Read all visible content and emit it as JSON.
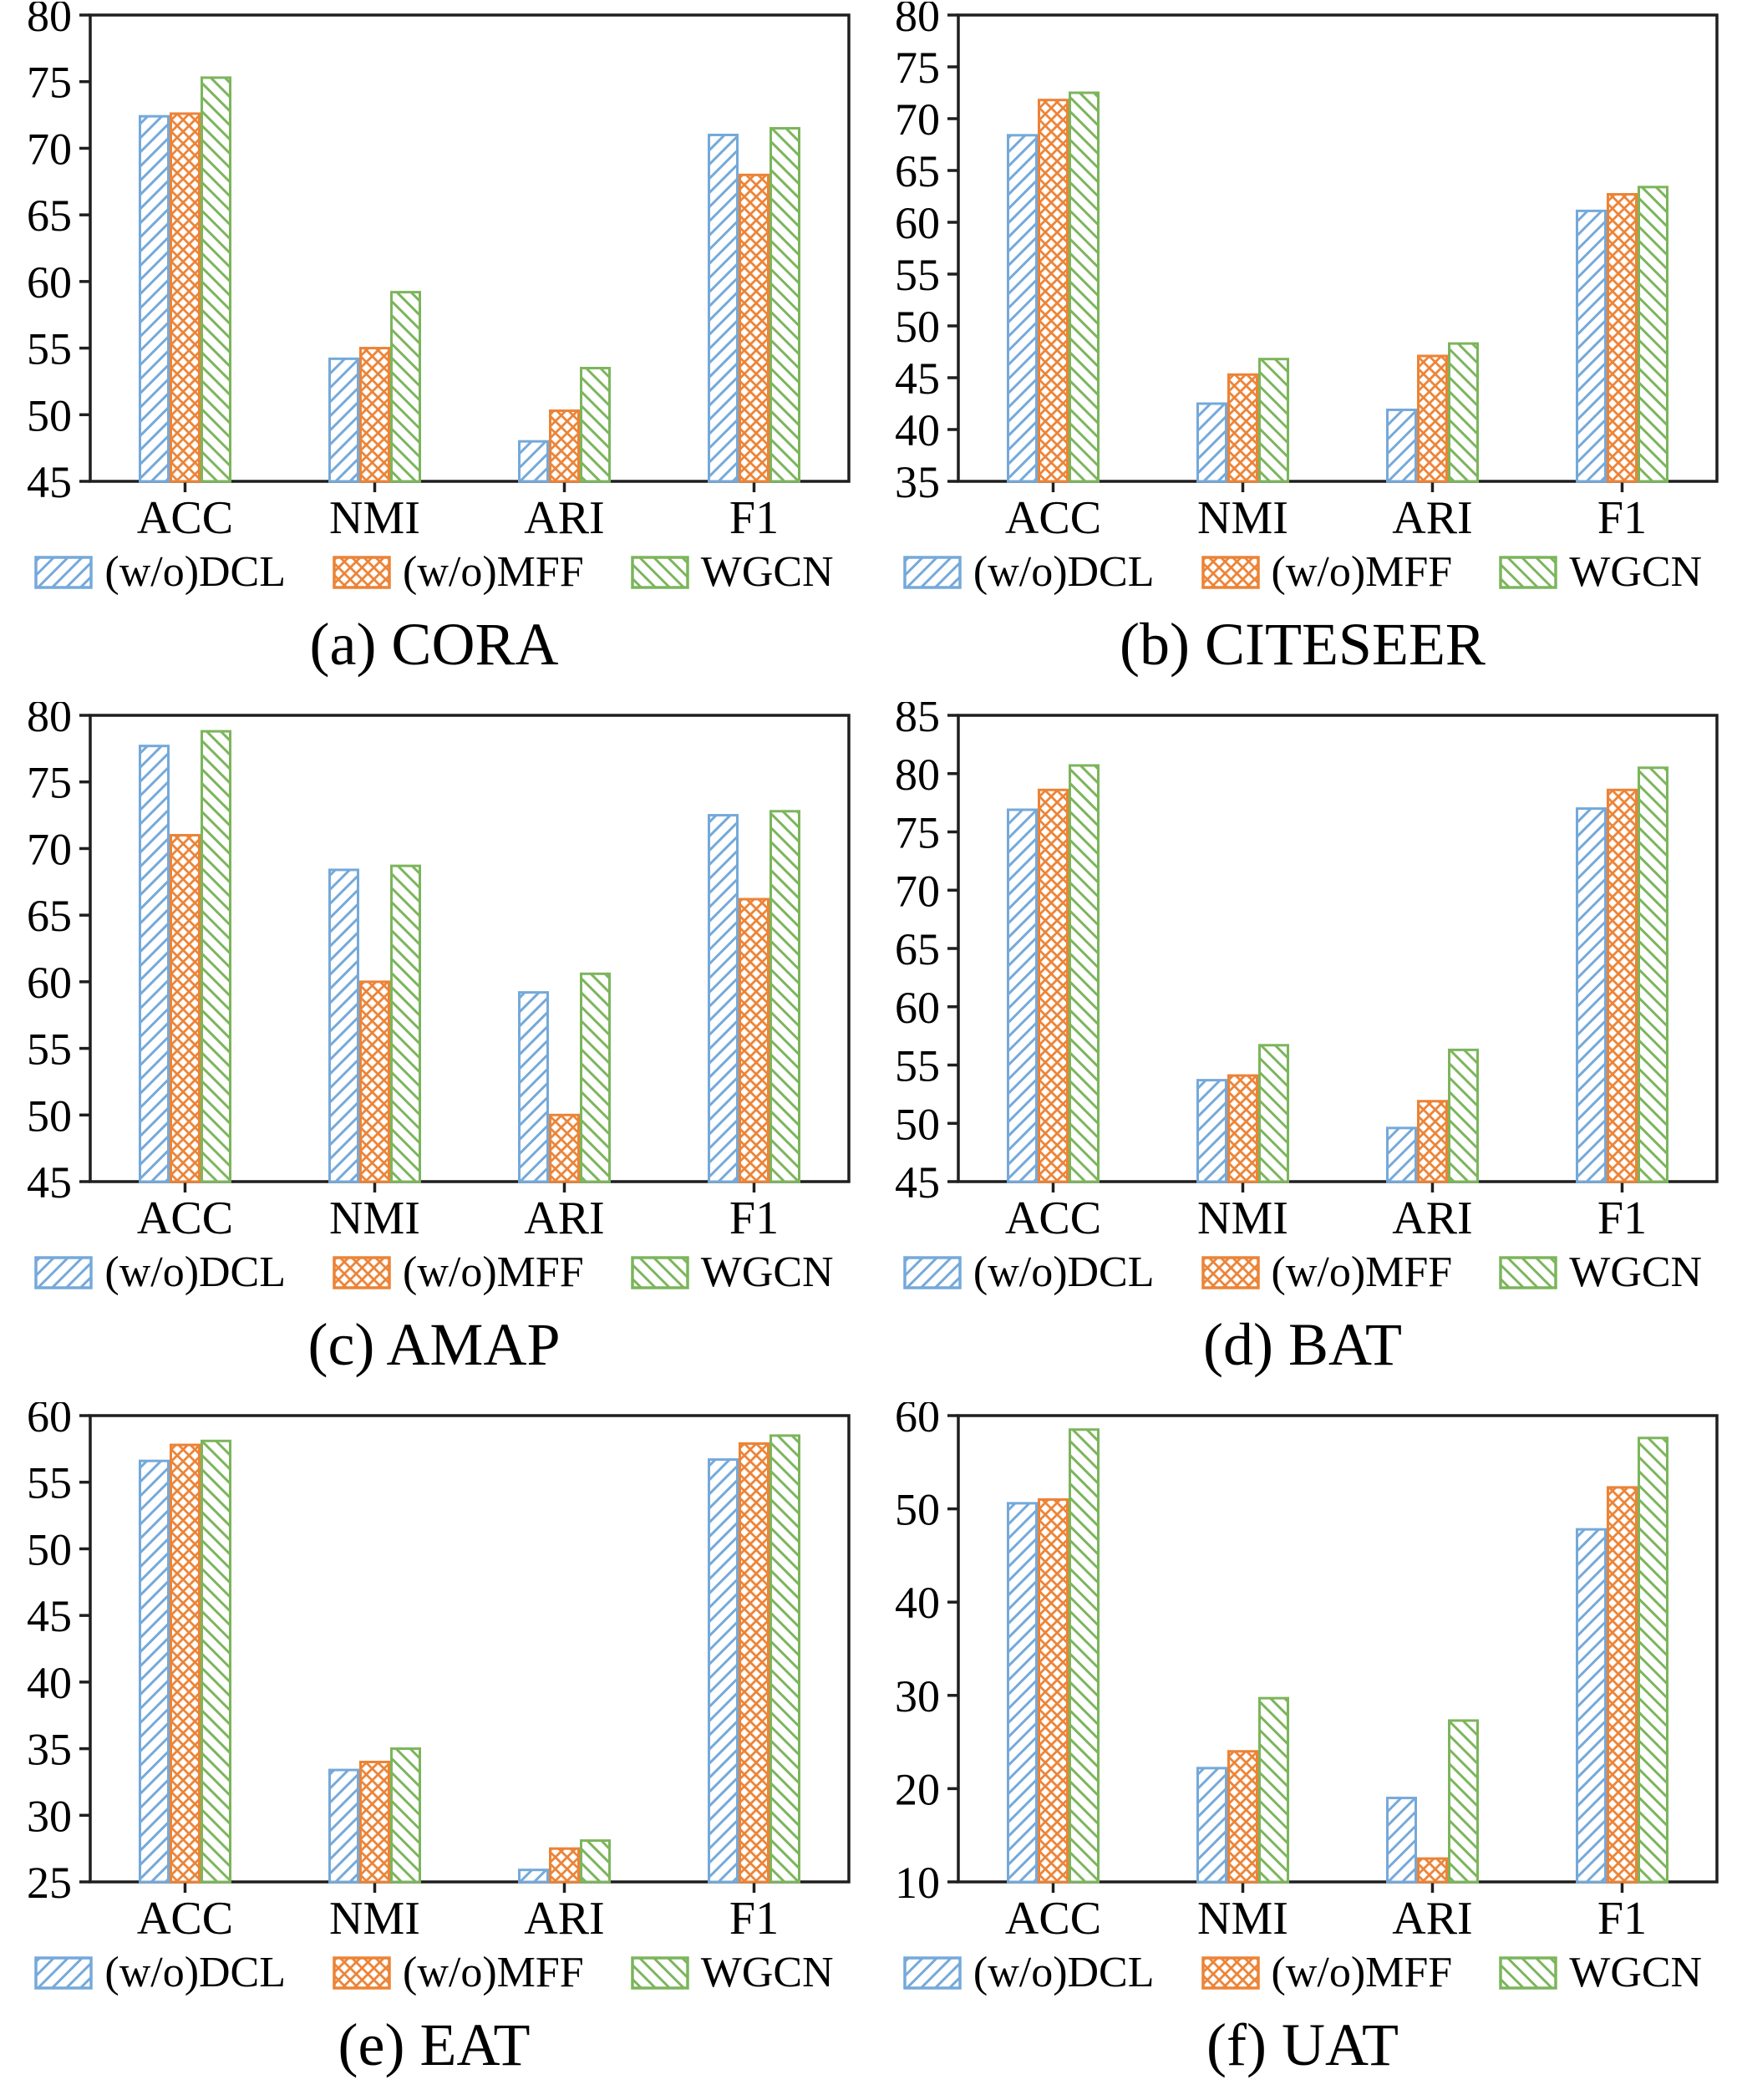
{
  "colors": {
    "dcl": "#75a9da",
    "mff": "#ec8336",
    "wgcn": "#7cb55c",
    "axis": "#1f1f1f",
    "text": "#000000"
  },
  "legend_labels": [
    "(w/o)DCL",
    "(w/o)MFF",
    "WGCN"
  ],
  "chart_data": [
    {
      "type": "bar",
      "caption": "(a) CORA",
      "categories": [
        "ACC",
        "NMI",
        "ARI",
        "F1"
      ],
      "ylim": [
        45,
        80
      ],
      "ystep": 5,
      "grid": false,
      "legend_position": "below",
      "series": [
        {
          "name": "(w/o)DCL",
          "key": "dcl",
          "values": [
            72.4,
            54.2,
            48.0,
            71.0
          ]
        },
        {
          "name": "(w/o)MFF",
          "key": "mff",
          "values": [
            72.6,
            55.0,
            50.3,
            68.0
          ]
        },
        {
          "name": "WGCN",
          "key": "wgcn",
          "values": [
            75.3,
            59.2,
            53.5,
            71.5
          ]
        }
      ]
    },
    {
      "type": "bar",
      "caption": "(b) CITESEER",
      "categories": [
        "ACC",
        "NMI",
        "ARI",
        "F1"
      ],
      "ylim": [
        35,
        80
      ],
      "ystep": 5,
      "grid": false,
      "legend_position": "below",
      "series": [
        {
          "name": "(w/o)DCL",
          "key": "dcl",
          "values": [
            68.4,
            42.5,
            41.9,
            61.1
          ]
        },
        {
          "name": "(w/o)MFF",
          "key": "mff",
          "values": [
            71.8,
            45.3,
            47.1,
            62.7
          ]
        },
        {
          "name": "WGCN",
          "key": "wgcn",
          "values": [
            72.5,
            46.8,
            48.3,
            63.4
          ]
        }
      ]
    },
    {
      "type": "bar",
      "caption": "(c) AMAP",
      "categories": [
        "ACC",
        "NMI",
        "ARI",
        "F1"
      ],
      "ylim": [
        45,
        80
      ],
      "ystep": 5,
      "grid": false,
      "legend_position": "below",
      "series": [
        {
          "name": "(w/o)DCL",
          "key": "dcl",
          "values": [
            77.7,
            68.4,
            59.2,
            72.5
          ]
        },
        {
          "name": "(w/o)MFF",
          "key": "mff",
          "values": [
            71.0,
            60.0,
            50.0,
            66.2
          ]
        },
        {
          "name": "WGCN",
          "key": "wgcn",
          "values": [
            78.8,
            68.7,
            60.6,
            72.8
          ]
        }
      ]
    },
    {
      "type": "bar",
      "caption": "(d) BAT",
      "categories": [
        "ACC",
        "NMI",
        "ARI",
        "F1"
      ],
      "ylim": [
        45,
        85
      ],
      "ystep": 5,
      "grid": false,
      "legend_position": "below",
      "series": [
        {
          "name": "(w/o)DCL",
          "key": "dcl",
          "values": [
            76.9,
            53.7,
            49.6,
            77.0
          ]
        },
        {
          "name": "(w/o)MFF",
          "key": "mff",
          "values": [
            78.6,
            54.1,
            51.9,
            78.6
          ]
        },
        {
          "name": "WGCN",
          "key": "wgcn",
          "values": [
            80.7,
            56.7,
            56.3,
            80.5
          ]
        }
      ]
    },
    {
      "type": "bar",
      "caption": "(e) EAT",
      "categories": [
        "ACC",
        "NMI",
        "ARI",
        "F1"
      ],
      "ylim": [
        25,
        60
      ],
      "ystep": 5,
      "grid": false,
      "legend_position": "below",
      "series": [
        {
          "name": "(w/o)DCL",
          "key": "dcl",
          "values": [
            56.6,
            33.4,
            25.9,
            56.7
          ]
        },
        {
          "name": "(w/o)MFF",
          "key": "mff",
          "values": [
            57.8,
            34.0,
            27.5,
            57.9
          ]
        },
        {
          "name": "WGCN",
          "key": "wgcn",
          "values": [
            58.1,
            35.0,
            28.1,
            58.5
          ]
        }
      ]
    },
    {
      "type": "bar",
      "caption": "(f) UAT",
      "categories": [
        "ACC",
        "NMI",
        "ARI",
        "F1"
      ],
      "ylim": [
        10,
        60
      ],
      "ystep": 10,
      "grid": false,
      "legend_position": "below",
      "series": [
        {
          "name": "(w/o)DCL",
          "key": "dcl",
          "values": [
            50.6,
            22.2,
            19.0,
            47.8
          ]
        },
        {
          "name": "(w/o)MFF",
          "key": "mff",
          "values": [
            51.0,
            24.0,
            12.5,
            52.3
          ]
        },
        {
          "name": "WGCN",
          "key": "wgcn",
          "values": [
            58.5,
            29.7,
            27.3,
            57.6
          ]
        }
      ]
    }
  ]
}
